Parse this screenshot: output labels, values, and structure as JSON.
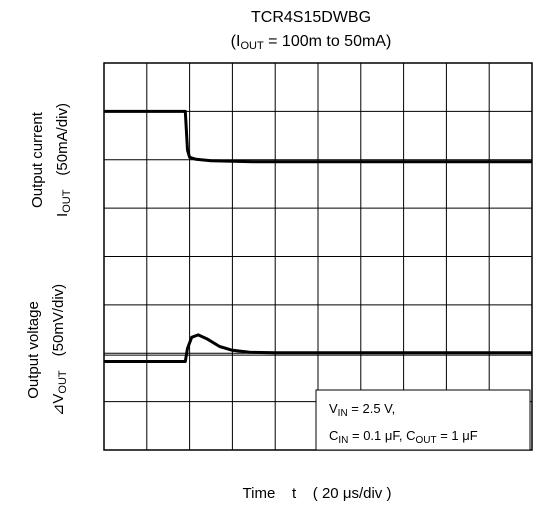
{
  "chart_data": {
    "type": "line",
    "title": "TCR4S15DWBG",
    "subtitle": {
      "prefix": "(I",
      "sub": "OUT",
      "suffix": " = 100m to 50mA)"
    },
    "xlabel": "Time    t    ( 20 μs/div )",
    "ylabel_top": {
      "line1": "Output current",
      "line2_main": "I",
      "line2_sub": "OUT",
      "line2_unit": "(50mA/div)"
    },
    "ylabel_bottom": {
      "line1": "Output voltage",
      "line2_main": "⊿V",
      "line2_sub": "OUT",
      "line2_unit": "(50mV/div)"
    },
    "grid": {
      "on": true,
      "x_divisions": 10,
      "y_divisions": 8
    },
    "xlim": [
      0,
      10
    ],
    "ylim": [
      0,
      8
    ],
    "series": [
      {
        "points": [
          [
            0,
            7.0
          ],
          [
            1.9,
            7.0
          ],
          [
            1.95,
            6.2
          ],
          [
            2.0,
            6.05
          ],
          [
            2.15,
            6.01
          ],
          [
            2.5,
            5.98
          ],
          [
            3.5,
            5.96
          ],
          [
            10,
            5.96
          ]
        ]
      },
      {
        "points": [
          [
            0,
            1.83
          ],
          [
            1.9,
            1.83
          ],
          [
            1.95,
            2.1
          ],
          [
            2.05,
            2.33
          ],
          [
            2.2,
            2.38
          ],
          [
            2.4,
            2.3
          ],
          [
            2.7,
            2.14
          ],
          [
            3.0,
            2.06
          ],
          [
            3.4,
            2.02
          ],
          [
            4.0,
            2.01
          ],
          [
            10,
            2.01
          ]
        ]
      }
    ],
    "reference_line_y": 1.96,
    "legend_placement": "bottom-right",
    "annotation": {
      "line1": {
        "v_main": "V",
        "v_sub": "IN",
        "v_val": " = 2.5 V,"
      },
      "line2": {
        "c1_main": "C",
        "c1_sub": "IN",
        "c1_val": " = 0.1 μF, ",
        "c2_main": "C",
        "c2_sub": "OUT",
        "c2_val": " = 1 μF"
      }
    },
    "colors": {
      "trace": "#000000",
      "grid": "#000000",
      "background": "#ffffff"
    }
  }
}
